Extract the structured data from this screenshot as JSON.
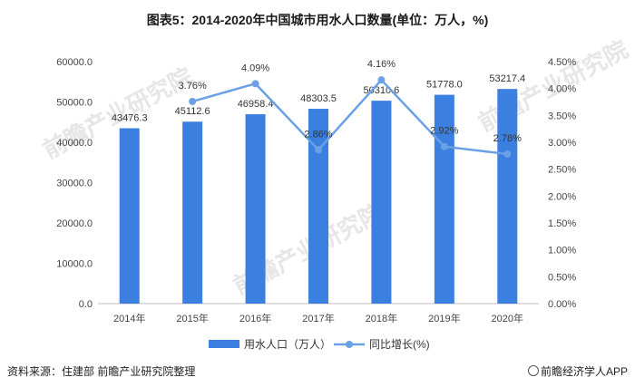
{
  "title": "图表5：2014-2020年中国城市用水人口数量(单位：万人，%)",
  "source": "资料来源：住建部 前瞻产业研究院整理",
  "brand": "前瞻经济学人APP",
  "watermark": "前瞻产业研究院",
  "chart_data": {
    "type": "bar+line",
    "categories": [
      "2014年",
      "2015年",
      "2016年",
      "2017年",
      "2018年",
      "2019年",
      "2020年"
    ],
    "series": [
      {
        "name": "用水人口（万人）",
        "type": "bar",
        "axis": "left",
        "color": "#3b7fe0",
        "values": [
          43476.3,
          45112.6,
          46958.4,
          48303.5,
          50310.6,
          51778.0,
          53217.4
        ],
        "labels": [
          "43476.3",
          "45112.6",
          "46958.4",
          "48303.5",
          "50310.6",
          "51778.0",
          "53217.4"
        ]
      },
      {
        "name": "同比增长(%)",
        "type": "line",
        "axis": "right",
        "color": "#6aa1e6",
        "values": [
          null,
          3.76,
          4.09,
          2.86,
          4.16,
          2.92,
          2.78
        ],
        "labels": [
          "",
          "3.76%",
          "4.09%",
          "2.86%",
          "4.16%",
          "2.92%",
          "2.78%"
        ]
      }
    ],
    "y_left": {
      "min": 0,
      "max": 60000,
      "ticks": [
        "0.0",
        "10000.0",
        "20000.0",
        "30000.0",
        "40000.0",
        "50000.0",
        "60000.0"
      ]
    },
    "y_right": {
      "min": 0,
      "max": 4.5,
      "ticks": [
        "0.00%",
        "0.50%",
        "1.00%",
        "1.50%",
        "2.00%",
        "2.50%",
        "3.00%",
        "3.50%",
        "4.00%",
        "4.50%"
      ]
    },
    "grid": false,
    "legend": "bottom"
  }
}
